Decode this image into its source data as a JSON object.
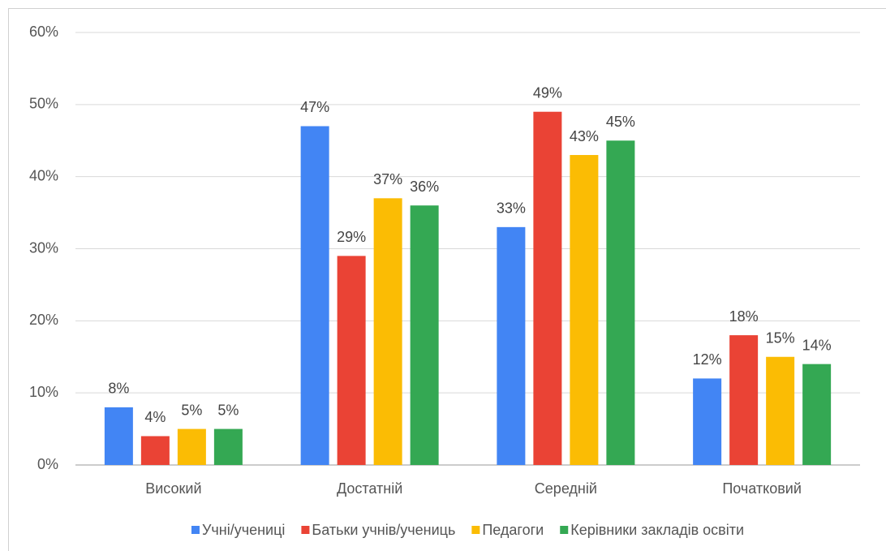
{
  "chart_data": {
    "type": "bar",
    "categories": [
      "Високий",
      "Достатній",
      "Середній",
      "Початковий"
    ],
    "series": [
      {
        "name": "Учні/учениці",
        "color": "#4285f4",
        "values": [
          8,
          47,
          33,
          12
        ],
        "value_labels": [
          "8%",
          "47%",
          "33%",
          "12%"
        ]
      },
      {
        "name": "Батьки учнів/учениць",
        "color": "#ea4335",
        "values": [
          4,
          29,
          49,
          18
        ],
        "value_labels": [
          "4%",
          "29%",
          "49%",
          "18%"
        ]
      },
      {
        "name": "Педагоги",
        "color": "#fbbc04",
        "values": [
          5,
          37,
          43,
          15
        ],
        "value_labels": [
          "5%",
          "37%",
          "43%",
          "15%"
        ]
      },
      {
        "name": "Керівники закладів освіти",
        "color": "#34a853",
        "values": [
          5,
          36,
          45,
          14
        ],
        "value_labels": [
          "5%",
          "36%",
          "45%",
          "14%"
        ]
      }
    ],
    "ylim": [
      0,
      60
    ],
    "yticks": [
      {
        "value": 0,
        "label": "0%"
      },
      {
        "value": 10,
        "label": "10%"
      },
      {
        "value": 20,
        "label": "20%"
      },
      {
        "value": 30,
        "label": "30%"
      },
      {
        "value": 40,
        "label": "40%"
      },
      {
        "value": 50,
        "label": "50%"
      },
      {
        "value": 60,
        "label": "60%"
      }
    ],
    "grid": true,
    "legend": "bottom"
  }
}
